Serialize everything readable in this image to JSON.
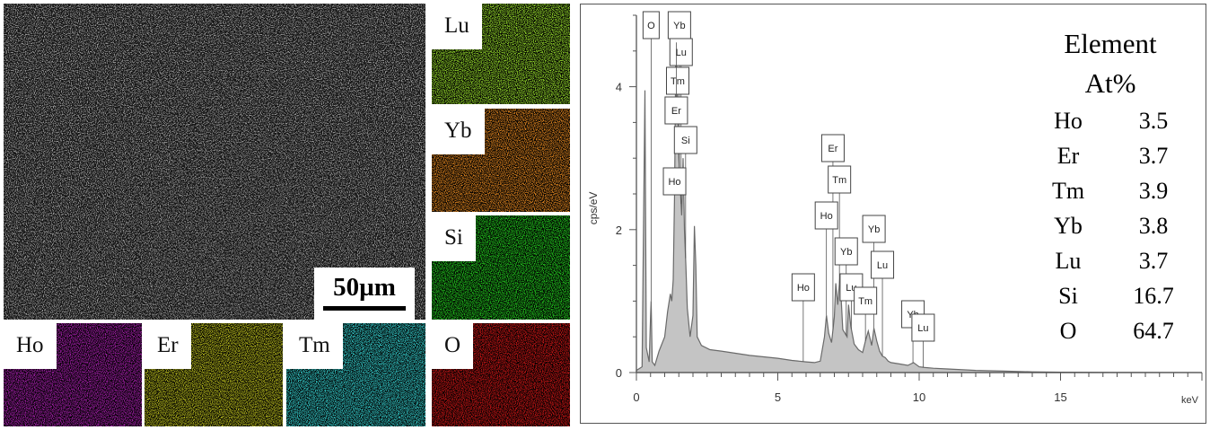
{
  "sem_image": {
    "scale_bar_label": "50µm"
  },
  "maps": [
    {
      "id": "lu",
      "label": "Lu",
      "color": "#8fd12a"
    },
    {
      "id": "yb",
      "label": "Yb",
      "color": "#d7801f"
    },
    {
      "id": "si",
      "label": "Si",
      "color": "#22c41e"
    },
    {
      "id": "o",
      "label": "O",
      "color": "#cc1616"
    },
    {
      "id": "ho",
      "label": "Ho",
      "color": "#a21fa8"
    },
    {
      "id": "er",
      "label": "Er",
      "color": "#b8bb1e"
    },
    {
      "id": "tm",
      "label": "Tm",
      "color": "#35cccb"
    }
  ],
  "chart_data": {
    "type": "line",
    "xlabel": "keV",
    "ylabel": "cps/eV",
    "xlim": [
      0,
      20
    ],
    "ylim": [
      0,
      5
    ],
    "x_ticks": [
      "0",
      "5",
      "10",
      "15"
    ],
    "y_ticks": [
      "0",
      "2",
      "4"
    ],
    "grid": false,
    "series": [
      {
        "x": [
          0.0,
          0.2,
          0.3,
          0.35,
          0.45,
          0.5,
          0.52,
          0.56,
          0.65,
          0.8,
          1.0,
          1.1,
          1.2,
          1.25,
          1.3,
          1.35,
          1.4,
          1.5,
          1.6,
          1.65,
          1.7,
          1.75,
          1.8,
          1.9,
          2.0,
          2.05,
          2.1,
          2.15,
          2.3,
          2.6,
          3.0,
          3.5,
          4.0,
          4.5,
          5.0,
          5.5,
          6.0,
          6.3,
          6.5,
          6.65,
          6.72,
          6.8,
          6.9,
          7.0,
          7.05,
          7.12,
          7.2,
          7.3,
          7.45,
          7.5,
          7.58,
          7.7,
          7.85,
          8.0,
          8.1,
          8.2,
          8.32,
          8.4,
          8.5,
          8.6,
          8.7,
          8.8,
          8.9,
          9.0,
          9.3,
          9.6,
          9.8,
          10.0,
          10.2,
          10.5,
          11.0,
          12.0,
          13.0,
          14.0,
          15.0,
          17.0,
          20.0
        ],
        "y": [
          0.03,
          0.08,
          3.95,
          0.35,
          0.15,
          0.8,
          1.0,
          0.15,
          0.1,
          0.3,
          0.5,
          0.85,
          1.1,
          1.0,
          1.3,
          2.5,
          4.8,
          3.0,
          2.2,
          3.0,
          2.0,
          1.5,
          0.9,
          0.5,
          0.8,
          2.05,
          1.5,
          0.5,
          0.38,
          0.32,
          0.3,
          0.27,
          0.24,
          0.22,
          0.2,
          0.17,
          0.15,
          0.14,
          0.16,
          0.5,
          0.8,
          0.55,
          0.42,
          0.78,
          1.25,
          0.95,
          1.35,
          0.6,
          0.5,
          0.95,
          0.65,
          0.4,
          0.32,
          0.28,
          0.44,
          0.58,
          0.38,
          0.62,
          0.44,
          0.3,
          0.23,
          0.21,
          0.16,
          0.14,
          0.12,
          0.1,
          0.14,
          0.08,
          0.07,
          0.06,
          0.05,
          0.03,
          0.02,
          0.01,
          0.005,
          0.002,
          0.0
        ]
      }
    ],
    "peak_labels": [
      {
        "text": "O",
        "x": 0.52
      },
      {
        "text": "Yb",
        "x": 1.52
      },
      {
        "text": "Lu",
        "x": 1.58
      },
      {
        "text": "Tm",
        "x": 1.46
      },
      {
        "text": "Er",
        "x": 1.41
      },
      {
        "text": "Si",
        "x": 1.74
      },
      {
        "text": "Ho",
        "x": 1.35
      },
      {
        "text": "Ho",
        "x": 5.9
      },
      {
        "text": "Er",
        "x": 6.95
      },
      {
        "text": "Tm",
        "x": 7.18
      },
      {
        "text": "Ho",
        "x": 6.72
      },
      {
        "text": "Yb",
        "x": 8.4
      },
      {
        "text": "Yb",
        "x": 7.42
      },
      {
        "text": "Lu",
        "x": 8.7
      },
      {
        "text": "Lu",
        "x": 7.6
      },
      {
        "text": "Tm",
        "x": 8.1
      },
      {
        "text": "Yb",
        "x": 9.78
      },
      {
        "text": "Lu",
        "x": 10.14
      }
    ],
    "table": {
      "header_1": "Element",
      "header_2": "At%",
      "rows": [
        {
          "element": "Ho",
          "value": "3.5"
        },
        {
          "element": "Er",
          "value": "3.7"
        },
        {
          "element": "Tm",
          "value": "3.9"
        },
        {
          "element": "Yb",
          "value": "3.8"
        },
        {
          "element": "Lu",
          "value": "3.7"
        },
        {
          "element": "Si",
          "value": "16.7"
        },
        {
          "element": "O",
          "value": "64.7"
        }
      ]
    }
  }
}
